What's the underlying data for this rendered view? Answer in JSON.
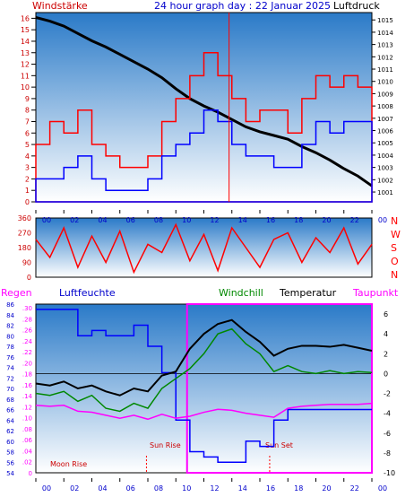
{
  "header": {
    "left": "Windstärke",
    "center": "24 hour graph day : 22 Januar 2025",
    "right": "Luftdruck"
  },
  "labels": {
    "regen": "Regen",
    "luftfeuchte": "Luftfeuchte",
    "windchill": "Windchill",
    "temperatur": "Temperatur",
    "taupunkt": "Taupunkt",
    "moon_rise": "Moon Rise",
    "sun_rise": "Sun Rise",
    "sun_set": "Sun Set"
  },
  "colors": {
    "title_blue": "#0000cc",
    "red": "#ff0000",
    "blue": "#0000ff",
    "black": "#000000",
    "green": "#008800",
    "magenta": "#ff00ff",
    "sky_top": "#2a7ac8",
    "sky_bottom": "#ffffff"
  },
  "chart_data": [
    {
      "type": "line",
      "name": "wind-and-pressure",
      "x_ticks": [
        "00",
        "02",
        "04",
        "06",
        "08",
        "10",
        "12",
        "14",
        "16",
        "18",
        "20",
        "22",
        "00"
      ],
      "y_left_ticks": [
        0,
        1,
        2,
        3,
        4,
        5,
        6,
        7,
        8,
        9,
        10,
        11,
        12,
        13,
        14,
        15,
        16
      ],
      "y_right_ticks": [
        1001,
        1002,
        1003,
        1004,
        1005,
        1006,
        1007,
        1008,
        1009,
        1010,
        1011,
        1012,
        1013,
        1014,
        1015
      ],
      "ylim_left": [
        0,
        16.5
      ],
      "ylim_right": [
        1000.2,
        1015.6
      ],
      "series": [
        {
          "key": "pressure",
          "axis": "right",
          "color": "#000000",
          "x": [
            0,
            1,
            2,
            3,
            4,
            5,
            6,
            7,
            8,
            9,
            10,
            11,
            12,
            13,
            14,
            15,
            16,
            17,
            18,
            19,
            20,
            21,
            22,
            23,
            24
          ],
          "y": [
            1015.2,
            1014.9,
            1014.5,
            1013.9,
            1013.3,
            1012.8,
            1012.2,
            1011.6,
            1011.0,
            1010.3,
            1009.4,
            1008.6,
            1008.0,
            1007.5,
            1006.9,
            1006.3,
            1005.9,
            1005.6,
            1005.3,
            1004.7,
            1004.2,
            1003.6,
            1002.9,
            1002.3,
            1001.5
          ]
        },
        {
          "key": "gust",
          "axis": "left",
          "color": "#ff0000",
          "x": [
            0,
            1,
            2,
            3,
            4,
            5,
            6,
            7,
            8,
            9,
            10,
            11,
            12,
            13,
            14,
            15,
            16,
            17,
            18,
            19,
            20,
            21,
            22,
            23,
            24
          ],
          "y": [
            5,
            7,
            6,
            8,
            5,
            4,
            3,
            3,
            4,
            7,
            9,
            11,
            13,
            11,
            9,
            7,
            8,
            8,
            6,
            9,
            11,
            10,
            11,
            10,
            9
          ]
        },
        {
          "key": "wind",
          "axis": "left",
          "color": "#0000ff",
          "x": [
            0,
            1,
            2,
            3,
            4,
            5,
            6,
            7,
            8,
            9,
            10,
            11,
            12,
            13,
            14,
            15,
            16,
            17,
            18,
            19,
            20,
            21,
            22,
            23,
            24
          ],
          "y": [
            2,
            2,
            3,
            4,
            2,
            1,
            1,
            1,
            2,
            4,
            5,
            6,
            8,
            7,
            5,
            4,
            4,
            3,
            3,
            5,
            7,
            6,
            7,
            7,
            7
          ]
        }
      ]
    },
    {
      "type": "line",
      "name": "wind-direction",
      "y_ticks": [
        0,
        90,
        180,
        270,
        360
      ],
      "y_right_letters": [
        "N",
        "W",
        "S",
        "O",
        "N"
      ],
      "ylim": [
        0,
        360
      ],
      "series": [
        {
          "key": "direction",
          "color": "#ff0000",
          "x": [
            0,
            1,
            2,
            3,
            4,
            5,
            6,
            7,
            8,
            9,
            10,
            11,
            12,
            13,
            14,
            15,
            16,
            17,
            18,
            19,
            20,
            21,
            22,
            23,
            24
          ],
          "y": [
            230,
            120,
            300,
            60,
            250,
            90,
            280,
            30,
            200,
            150,
            320,
            100,
            260,
            40,
            300,
            180,
            60,
            230,
            270,
            90,
            240,
            150,
            300,
            80,
            200
          ]
        }
      ]
    },
    {
      "type": "line",
      "name": "humidity-temperature",
      "y_regen_ticks": [
        0,
        0.02,
        0.04,
        0.06,
        0.08,
        0.1,
        0.12,
        0.14,
        0.16,
        0.18,
        0.2,
        0.22,
        0.24,
        0.26,
        0.28,
        0.3
      ],
      "y_humidity_ticks": [
        54,
        56,
        58,
        60,
        62,
        64,
        66,
        68,
        70,
        72,
        74,
        76,
        78,
        80,
        82,
        84,
        86
      ],
      "y_temp_ticks": [
        6,
        4,
        2,
        0,
        -2,
        -4,
        -6,
        -8,
        -10
      ],
      "ylim_humidity": [
        54,
        86
      ],
      "ylim_temp": [
        -10,
        7
      ],
      "series": [
        {
          "key": "humidity",
          "axis": "humidity",
          "color": "#0000ff",
          "x": [
            0,
            1,
            2,
            3,
            4,
            5,
            6,
            7,
            8,
            9,
            10,
            11,
            12,
            13,
            14,
            15,
            16,
            17,
            18,
            19,
            20,
            21,
            22,
            23,
            24
          ],
          "y": [
            85,
            85,
            85,
            80,
            81,
            80,
            80,
            82,
            78,
            73,
            64,
            58,
            57,
            56,
            56,
            60,
            59,
            64,
            66,
            66,
            66,
            66,
            66,
            66,
            66
          ]
        },
        {
          "key": "temperatur",
          "axis": "temp",
          "color": "#000000",
          "x": [
            0,
            1,
            2,
            3,
            4,
            5,
            6,
            7,
            8,
            9,
            10,
            11,
            12,
            13,
            14,
            15,
            16,
            17,
            18,
            19,
            20,
            21,
            22,
            23,
            24
          ],
          "y": [
            -1,
            -1.2,
            -0.8,
            -1.5,
            -1.2,
            -1.8,
            -2.2,
            -1.5,
            -1.8,
            -0.2,
            0.2,
            2.5,
            4,
            5,
            5.4,
            4.2,
            3.2,
            1.8,
            2.5,
            2.8,
            2.8,
            2.7,
            2.9,
            2.6,
            2.3
          ]
        },
        {
          "key": "windchill",
          "axis": "temp",
          "color": "#008800",
          "x": [
            0,
            1,
            2,
            3,
            4,
            5,
            6,
            7,
            8,
            9,
            10,
            11,
            12,
            13,
            14,
            15,
            16,
            17,
            18,
            19,
            20,
            21,
            22,
            23,
            24
          ],
          "y": [
            -2,
            -2.2,
            -1.8,
            -2.8,
            -2.2,
            -3.5,
            -3.8,
            -3,
            -3.5,
            -1.5,
            -0.5,
            0.5,
            2,
            4,
            4.5,
            3,
            2,
            0.2,
            0.8,
            0.2,
            0,
            0.3,
            0,
            0.2,
            0.1
          ]
        },
        {
          "key": "taupunkt",
          "axis": "temp",
          "color": "#ff00ff",
          "x": [
            0,
            1,
            2,
            3,
            4,
            5,
            6,
            7,
            8,
            9,
            10,
            11,
            12,
            13,
            14,
            15,
            16,
            17,
            18,
            19,
            20,
            21,
            22,
            23,
            24
          ],
          "y": [
            -3.2,
            -3.3,
            -3.2,
            -3.8,
            -3.9,
            -4.2,
            -4.5,
            -4.2,
            -4.6,
            -4.1,
            -4.5,
            -4.3,
            -3.9,
            -3.6,
            -3.7,
            -4,
            -4.2,
            -4.4,
            -3.5,
            -3.3,
            -3.2,
            -3.1,
            -3.1,
            -3.1,
            -3
          ]
        }
      ]
    }
  ]
}
